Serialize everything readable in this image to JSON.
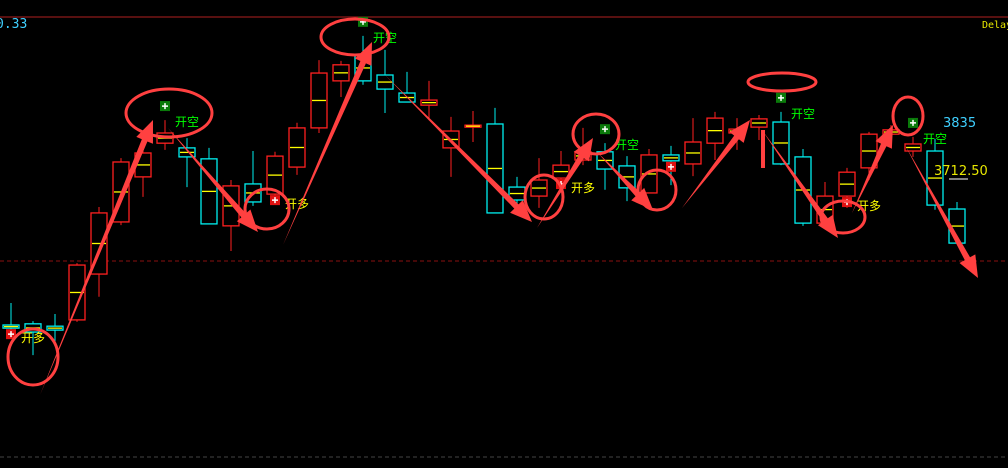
{
  "header": {
    "left_value": "0.33",
    "right_status": "Delay"
  },
  "colors": {
    "up": "#ff2020",
    "down": "#00f0f0",
    "mid": "#ffff00",
    "annotation": "#ff4040",
    "buy_text": "#ffff00",
    "sell_text": "#00ff00"
  },
  "chart_data": {
    "type": "candlestick",
    "price_labels": {
      "high": "3835",
      "last": "3712.50"
    },
    "candles": [
      [
        3322,
        3378,
        3302,
        3314
      ],
      [
        3325,
        3332,
        3245,
        3304
      ],
      [
        3319,
        3350,
        3276,
        3309
      ],
      [
        3335,
        3480,
        3330,
        3475
      ],
      [
        3452,
        3623,
        3394,
        3608
      ],
      [
        3585,
        3748,
        3577,
        3738
      ],
      [
        3700,
        3769,
        3649,
        3761
      ],
      [
        3786,
        3845,
        3769,
        3812
      ],
      [
        3774,
        3799,
        3674,
        3751
      ],
      [
        3746,
        3774,
        3580,
        3580
      ],
      [
        3575,
        3692,
        3511,
        3677
      ],
      [
        3682,
        3766,
        3626,
        3636
      ],
      [
        3656,
        3764,
        3646,
        3753
      ],
      [
        3725,
        3838,
        3705,
        3825
      ],
      [
        3825,
        3998,
        3812,
        3965
      ],
      [
        3945,
        3996,
        3904,
        3986
      ],
      [
        4011,
        4060,
        3935,
        3945
      ],
      [
        3960,
        4024,
        3863,
        3924
      ],
      [
        3914,
        3968,
        3891,
        3891
      ],
      [
        3883,
        3945,
        3845,
        3896
      ],
      [
        3774,
        3853,
        3700,
        3817
      ],
      [
        3827,
        3868,
        3789,
        3832
      ],
      [
        3835,
        3876,
        3608,
        3608
      ],
      [
        3674,
        3700,
        3616,
        3641
      ],
      [
        3651,
        3748,
        3621,
        3692
      ],
      [
        3697,
        3766,
        3687,
        3730
      ],
      [
        3743,
        3825,
        3730,
        3764
      ],
      [
        3764,
        3786,
        3667,
        3720
      ],
      [
        3728,
        3753,
        3638,
        3672
      ],
      [
        3659,
        3771,
        3659,
        3756
      ],
      [
        3756,
        3779,
        3679,
        3741
      ],
      [
        3733,
        3850,
        3702,
        3789
      ],
      [
        3786,
        3866,
        3743,
        3850
      ],
      [
        3812,
        3850,
        3769,
        3822
      ],
      [
        3827,
        3858,
        3794,
        3848
      ],
      [
        3840,
        3866,
        3730,
        3733
      ],
      [
        3751,
        3771,
        3575,
        3582
      ],
      [
        3582,
        3687,
        3577,
        3651
      ],
      [
        3651,
        3723,
        3621,
        3712
      ],
      [
        3723,
        3815,
        3692,
        3809
      ],
      [
        3809,
        3832,
        3794,
        3820
      ],
      [
        3766,
        3802,
        3751,
        3784
      ],
      [
        3766,
        3797,
        3616,
        3628
      ],
      [
        3618,
        3636,
        3531,
        3531
      ]
    ],
    "signals": [
      {
        "candle": 0,
        "type": "buy",
        "label": "开多"
      },
      {
        "candle": 7,
        "type": "sell",
        "label": "开空"
      },
      {
        "candle": 12,
        "type": "buy",
        "label": "开多"
      },
      {
        "candle": 16,
        "type": "sell",
        "label": "开空"
      },
      {
        "candle": 25,
        "type": "buy",
        "label": "开多"
      },
      {
        "candle": 27,
        "type": "sell",
        "label": "开空"
      },
      {
        "candle": 30,
        "type": "buy",
        "label": ""
      },
      {
        "candle": 35,
        "type": "sell",
        "label": "开空"
      },
      {
        "candle": 38,
        "type": "buy",
        "label": "开多"
      },
      {
        "candle": 41,
        "type": "sell",
        "label": "开空"
      }
    ],
    "reference_levels": {
      "dashed_mid": true,
      "dashed_bottom": true
    }
  }
}
